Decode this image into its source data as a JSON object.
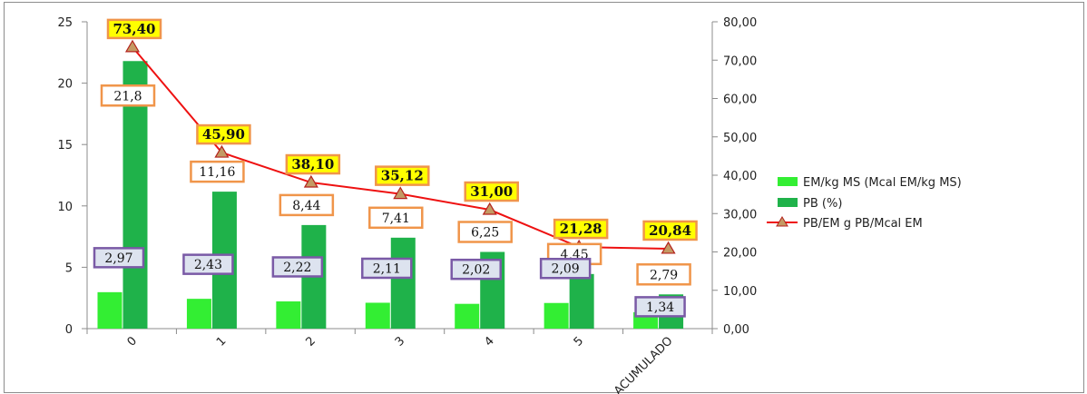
{
  "chart_data": {
    "type": "bar",
    "categories": [
      "0",
      "1",
      "2",
      "3",
      "4",
      "5",
      "ACUMULADO"
    ],
    "series": [
      {
        "name": "EM/kg MS (Mcal EM/kg MS)",
        "type": "bar",
        "axis": "left",
        "color": "#33ee33",
        "values": [
          2.97,
          2.43,
          2.22,
          2.11,
          2.02,
          2.09,
          1.34
        ],
        "labels": [
          "2,97",
          "2,43",
          "2,22",
          "2,11",
          "2,02",
          "2,09",
          "1,34"
        ]
      },
      {
        "name": "PB (%)",
        "type": "bar",
        "axis": "left",
        "color": "#1fb24a",
        "values": [
          21.8,
          11.16,
          8.44,
          7.41,
          6.25,
          4.45,
          2.79
        ],
        "labels": [
          "21,8",
          "11,16",
          "8,44",
          "7,41",
          "6,25",
          "4,45",
          "2,79"
        ]
      },
      {
        "name": "PB/EM g PB/Mcal EM",
        "type": "line",
        "axis": "right",
        "color": "#ee1111",
        "values": [
          73.4,
          45.9,
          38.1,
          35.12,
          31.0,
          21.28,
          20.84
        ],
        "labels": [
          "73,40",
          "45,90",
          "38,10",
          "35,12",
          "31,00",
          "21,28",
          "20,84"
        ]
      }
    ],
    "y_left": {
      "min": 0,
      "max": 25,
      "ticks": [
        "0",
        "5",
        "10",
        "15",
        "20",
        "25"
      ]
    },
    "y_right": {
      "min": 0,
      "max": 80,
      "ticks": [
        "0,00",
        "10,00",
        "20,00",
        "30,00",
        "40,00",
        "50,00",
        "60,00",
        "70,00",
        "80,00"
      ]
    },
    "grid": false,
    "legend_position": "right"
  }
}
